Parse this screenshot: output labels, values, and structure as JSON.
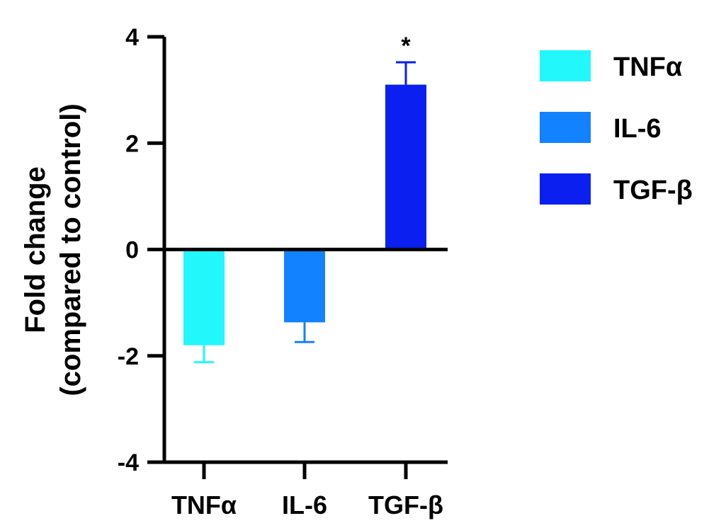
{
  "chart_data": {
    "type": "bar",
    "title": "",
    "xlabel": "",
    "ylabel_lines": [
      "Fold change",
      "(compared to control)"
    ],
    "categories": [
      "TNFα",
      "IL-6",
      "TGF-β"
    ],
    "values": [
      -1.8,
      -1.37,
      3.1
    ],
    "errors": [
      0.32,
      0.37,
      0.42
    ],
    "annotations": [
      "",
      "",
      "*"
    ],
    "colors": [
      "#22f7fb",
      "#1282ff",
      "#0a1ff0"
    ],
    "ylim": [
      -4,
      4
    ],
    "yticks": [
      4,
      2,
      0,
      -2,
      -4
    ],
    "ytick_labels": [
      "4",
      "2",
      "0",
      "-2",
      "-4"
    ],
    "grid": false,
    "legend": {
      "position": "right",
      "entries": [
        "TNFα",
        "IL-6",
        "TGF-β"
      ]
    }
  }
}
